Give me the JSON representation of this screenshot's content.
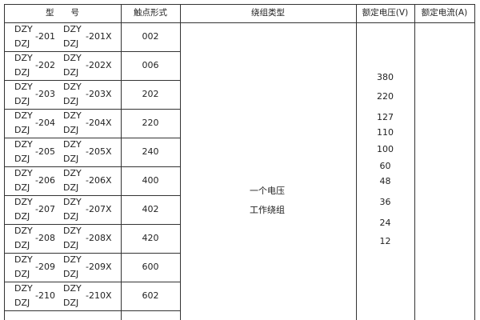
{
  "headers": [
    "型　　号",
    "触点形式",
    "绕组类型",
    "额定电压(V)",
    "额定电流(A)"
  ],
  "rows": [
    {
      "a1": "DZY",
      "a2": "DZJ",
      "n1": "-201",
      "b1": "DZY",
      "b2": "DZJ",
      "n2": "-201X",
      "contact": "002"
    },
    {
      "a1": "DZY",
      "a2": "DZJ",
      "n1": "-202",
      "b1": "DZY",
      "b2": "DZJ",
      "n2": "-202X",
      "contact": "006"
    },
    {
      "a1": "DZY",
      "a2": "DZJ",
      "n1": "-203",
      "b1": "DZY",
      "b2": "DZJ",
      "n2": "-203X",
      "contact": "202"
    },
    {
      "a1": "DZY",
      "a2": "DZJ",
      "n1": "-204",
      "b1": "DZY",
      "b2": "DZJ",
      "n2": "-204X",
      "contact": "220"
    },
    {
      "a1": "DZY",
      "a2": "DZJ",
      "n1": "-205",
      "b1": "DZY",
      "b2": "DZJ",
      "n2": "-205X",
      "contact": "240"
    },
    {
      "a1": "DZY",
      "a2": "DZJ",
      "n1": "-206",
      "b1": "DZY",
      "b2": "DZJ",
      "n2": "-206X",
      "contact": "400"
    },
    {
      "a1": "DZY",
      "a2": "DZJ",
      "n1": "-207",
      "b1": "DZY",
      "b2": "DZJ",
      "n2": "-207X",
      "contact": "402"
    },
    {
      "a1": "DZY",
      "a2": "DZJ",
      "n1": "-208",
      "b1": "DZY",
      "b2": "DZJ",
      "n2": "-208X",
      "contact": "420"
    },
    {
      "a1": "DZY",
      "a2": "DZJ",
      "n1": "-209",
      "b1": "DZY",
      "b2": "DZJ",
      "n2": "-209X",
      "contact": "600"
    },
    {
      "a1": "DZY",
      "a2": "DZJ",
      "n1": "-210",
      "b1": "DZY",
      "b2": "DZJ",
      "n2": "-210X",
      "contact": "602"
    }
  ],
  "winding": [
    "一个电压",
    "工作绕组"
  ],
  "voltages": [
    "380",
    "220",
    "127",
    "110",
    "100",
    "60",
    "48",
    "36",
    "24",
    "12"
  ]
}
